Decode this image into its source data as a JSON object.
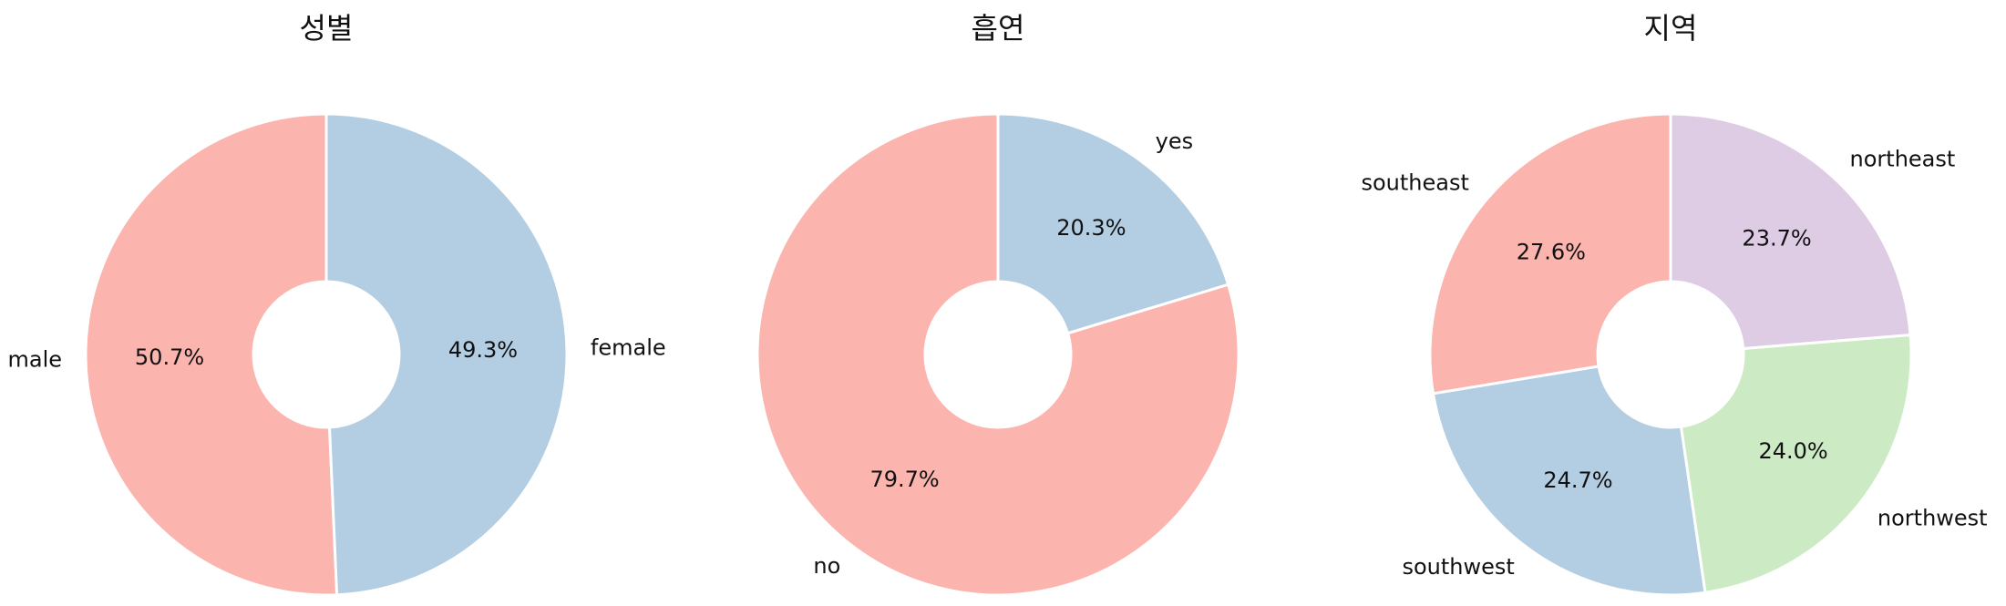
{
  "colors": [
    "#fbb4ae",
    "#b3cde3",
    "#ccebc5",
    "#decbe4"
  ],
  "chart_data": [
    {
      "type": "pie",
      "donut": true,
      "title": "성별",
      "start_angle_deg": 90,
      "direction": "counterclockwise",
      "slices": [
        {
          "label": "male",
          "value": 50.7,
          "pct_label": "50.7%",
          "color": "#fbb4ae"
        },
        {
          "label": "female",
          "value": 49.3,
          "pct_label": "49.3%",
          "color": "#b3cde3"
        }
      ]
    },
    {
      "type": "pie",
      "donut": true,
      "title": "흡연",
      "start_angle_deg": 90,
      "direction": "counterclockwise",
      "slices": [
        {
          "label": "no",
          "value": 79.7,
          "pct_label": "79.7%",
          "color": "#fbb4ae"
        },
        {
          "label": "yes",
          "value": 20.3,
          "pct_label": "20.3%",
          "color": "#b3cde3"
        }
      ]
    },
    {
      "type": "pie",
      "donut": true,
      "title": "지역",
      "start_angle_deg": 90,
      "direction": "counterclockwise",
      "slices": [
        {
          "label": "southeast",
          "value": 27.6,
          "pct_label": "27.6%",
          "color": "#fbb4ae"
        },
        {
          "label": "southwest",
          "value": 24.7,
          "pct_label": "24.7%",
          "color": "#b3cde3"
        },
        {
          "label": "northwest",
          "value": 24.0,
          "pct_label": "24.0%",
          "color": "#ccebc5"
        },
        {
          "label": "northeast",
          "value": 23.7,
          "pct_label": "23.7%",
          "color": "#decbe4"
        }
      ]
    }
  ]
}
